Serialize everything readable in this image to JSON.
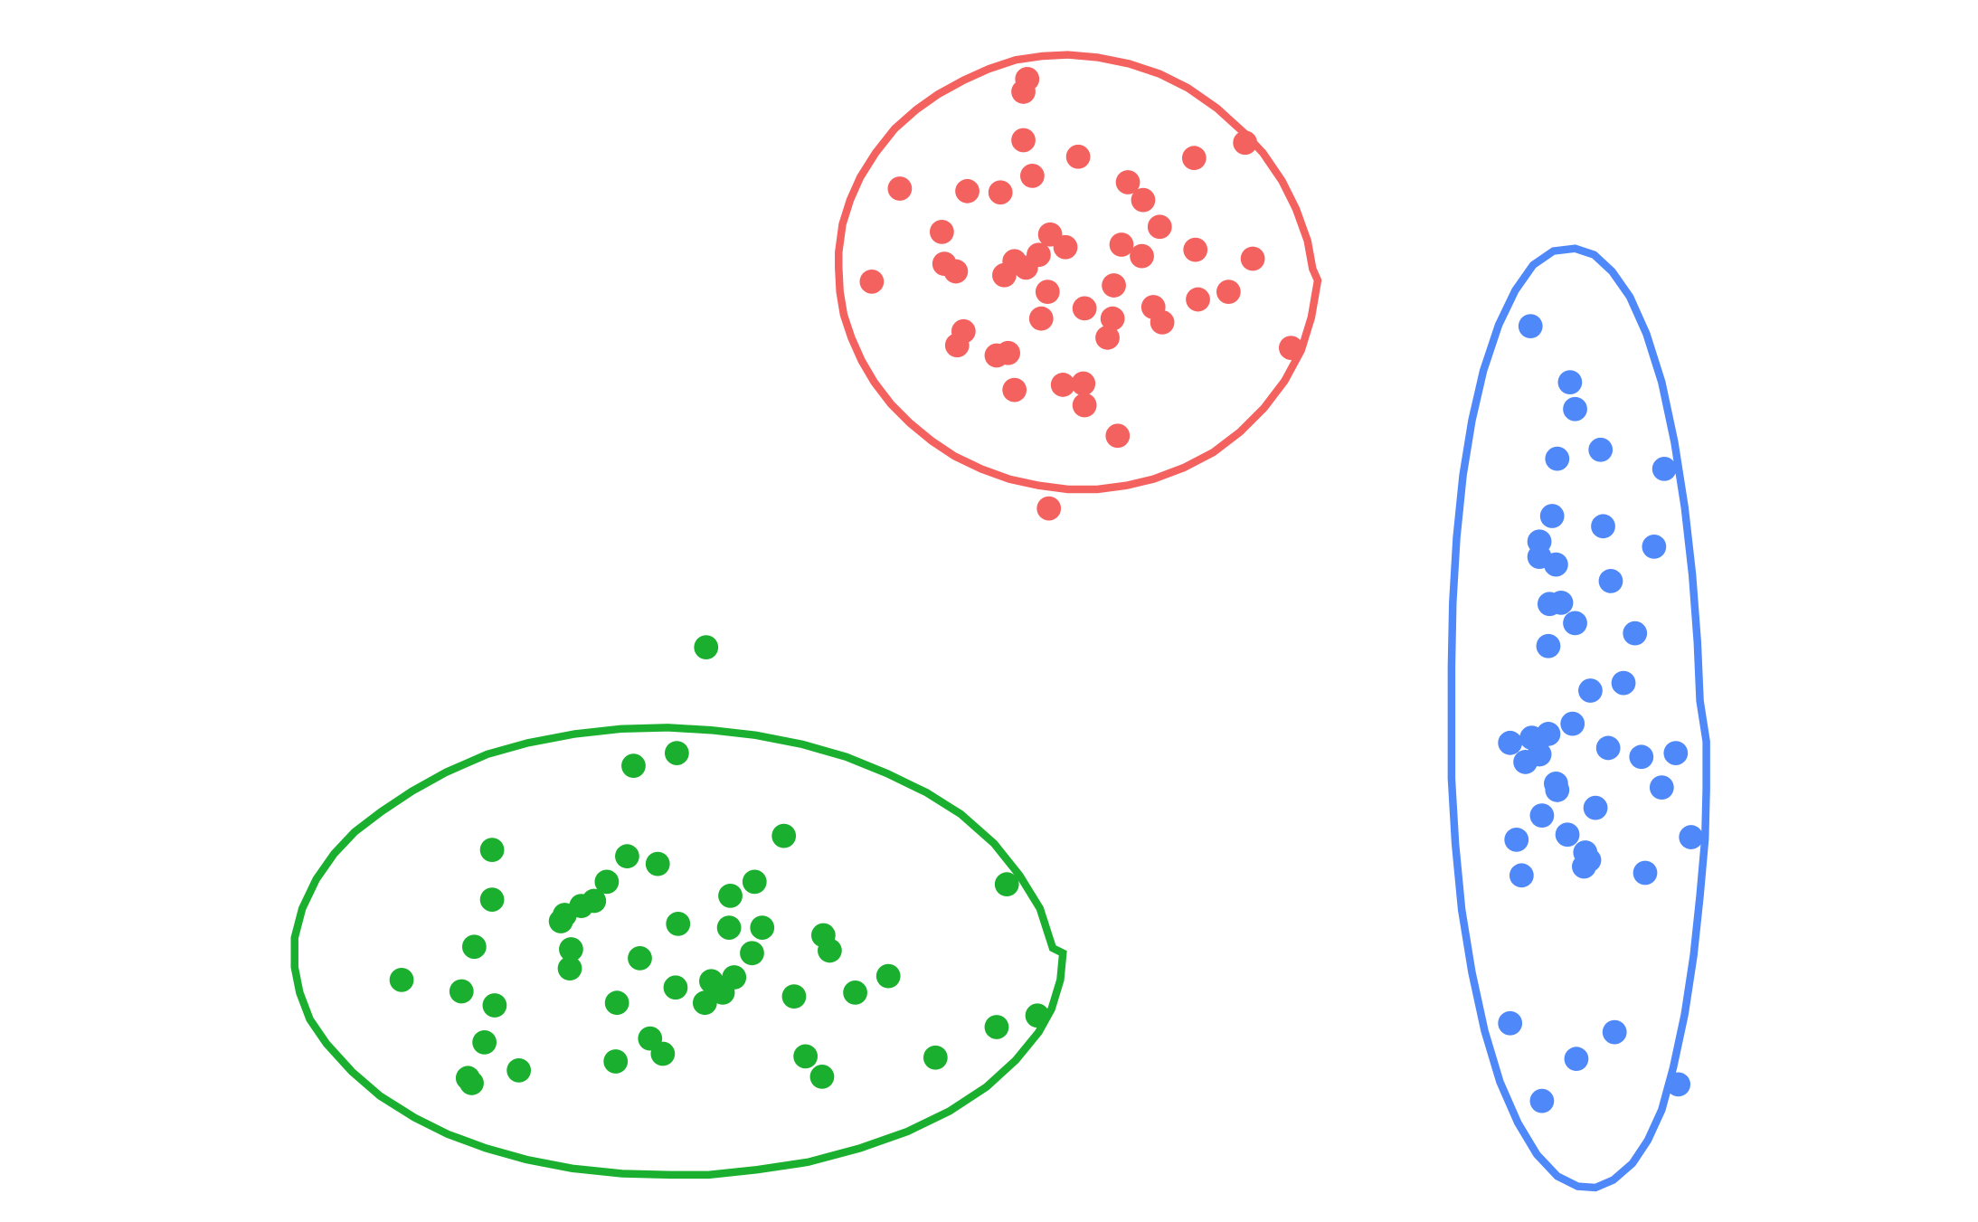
{
  "chart_data": {
    "type": "scatter",
    "title": "",
    "xlabel": "",
    "ylabel": "",
    "grid": false,
    "axes_visible": false,
    "xlim": [
      0,
      1552
    ],
    "ylim": [
      0,
      959
    ],
    "y_direction": "down",
    "series": [
      {
        "color": "#f46260",
        "points": [
          [
            806,
            62
          ],
          [
            803,
            72
          ],
          [
            803,
            110
          ],
          [
            810,
            138
          ],
          [
            785,
            151
          ],
          [
            759,
            150
          ],
          [
            706,
            148
          ],
          [
            846,
            123
          ],
          [
            937,
            124
          ],
          [
            977,
            112
          ],
          [
            885,
            143
          ],
          [
            897,
            157
          ],
          [
            910,
            178
          ],
          [
            896,
            201
          ],
          [
            880,
            192
          ],
          [
            836,
            194
          ],
          [
            824,
            184
          ],
          [
            815,
            200
          ],
          [
            796,
            205
          ],
          [
            805,
            210
          ],
          [
            788,
            216
          ],
          [
            739,
            182
          ],
          [
            741,
            207
          ],
          [
            750,
            213
          ],
          [
            684,
            221
          ],
          [
            822,
            229
          ],
          [
            874,
            224
          ],
          [
            851,
            242
          ],
          [
            873,
            250
          ],
          [
            869,
            265
          ],
          [
            817,
            250
          ],
          [
            905,
            241
          ],
          [
            912,
            253
          ],
          [
            940,
            235
          ],
          [
            964,
            229
          ],
          [
            938,
            196
          ],
          [
            983,
            203
          ],
          [
            1013,
            273
          ],
          [
            756,
            260
          ],
          [
            751,
            271
          ],
          [
            782,
            279
          ],
          [
            791,
            277
          ],
          [
            796,
            306
          ],
          [
            834,
            302
          ],
          [
            850,
            301
          ],
          [
            851,
            318
          ],
          [
            877,
            342
          ],
          [
            823,
            399
          ]
        ]
      },
      {
        "color": "#1aaf2e",
        "points": [
          [
            554,
            508
          ],
          [
            531,
            591
          ],
          [
            497,
            601
          ],
          [
            615,
            656
          ],
          [
            492,
            672
          ],
          [
            516,
            678
          ],
          [
            476,
            692
          ],
          [
            466,
            707
          ],
          [
            456,
            711
          ],
          [
            443,
            718
          ],
          [
            440,
            723
          ],
          [
            386,
            667
          ],
          [
            386,
            706
          ],
          [
            372,
            743
          ],
          [
            448,
            745
          ],
          [
            447,
            760
          ],
          [
            315,
            769
          ],
          [
            362,
            778
          ],
          [
            388,
            789
          ],
          [
            380,
            818
          ],
          [
            367,
            846
          ],
          [
            370,
            850
          ],
          [
            407,
            840
          ],
          [
            483,
            833
          ],
          [
            510,
            815
          ],
          [
            520,
            827
          ],
          [
            484,
            787
          ],
          [
            502,
            752
          ],
          [
            532,
            725
          ],
          [
            530,
            775
          ],
          [
            553,
            787
          ],
          [
            567,
            779
          ],
          [
            576,
            767
          ],
          [
            590,
            748
          ],
          [
            598,
            728
          ],
          [
            572,
            728
          ],
          [
            573,
            703
          ],
          [
            592,
            692
          ],
          [
            646,
            734
          ],
          [
            651,
            746
          ],
          [
            671,
            779
          ],
          [
            697,
            766
          ],
          [
            623,
            782
          ],
          [
            632,
            829
          ],
          [
            645,
            845
          ],
          [
            734,
            830
          ],
          [
            782,
            806
          ],
          [
            814,
            797
          ],
          [
            790,
            694
          ],
          [
            558,
            770
          ]
        ]
      },
      {
        "color": "#4f88f8",
        "points": [
          [
            1201,
            256
          ],
          [
            1232,
            300
          ],
          [
            1236,
            321
          ],
          [
            1222,
            360
          ],
          [
            1256,
            353
          ],
          [
            1306,
            368
          ],
          [
            1218,
            405
          ],
          [
            1208,
            425
          ],
          [
            1208,
            437
          ],
          [
            1221,
            443
          ],
          [
            1258,
            413
          ],
          [
            1298,
            429
          ],
          [
            1264,
            456
          ],
          [
            1216,
            474
          ],
          [
            1225,
            473
          ],
          [
            1236,
            489
          ],
          [
            1283,
            497
          ],
          [
            1215,
            507
          ],
          [
            1248,
            542
          ],
          [
            1274,
            536
          ],
          [
            1234,
            568
          ],
          [
            1215,
            576
          ],
          [
            1202,
            579
          ],
          [
            1185,
            583
          ],
          [
            1197,
            598
          ],
          [
            1208,
            592
          ],
          [
            1262,
            587
          ],
          [
            1288,
            594
          ],
          [
            1315,
            591
          ],
          [
            1304,
            618
          ],
          [
            1221,
            615
          ],
          [
            1222,
            620
          ],
          [
            1210,
            640
          ],
          [
            1252,
            634
          ],
          [
            1230,
            655
          ],
          [
            1190,
            659
          ],
          [
            1244,
            669
          ],
          [
            1247,
            675
          ],
          [
            1243,
            680
          ],
          [
            1327,
            657
          ],
          [
            1194,
            687
          ],
          [
            1291,
            685
          ],
          [
            1185,
            803
          ],
          [
            1237,
            831
          ],
          [
            1267,
            810
          ],
          [
            1210,
            864
          ],
          [
            1317,
            851
          ]
        ]
      }
    ]
  }
}
